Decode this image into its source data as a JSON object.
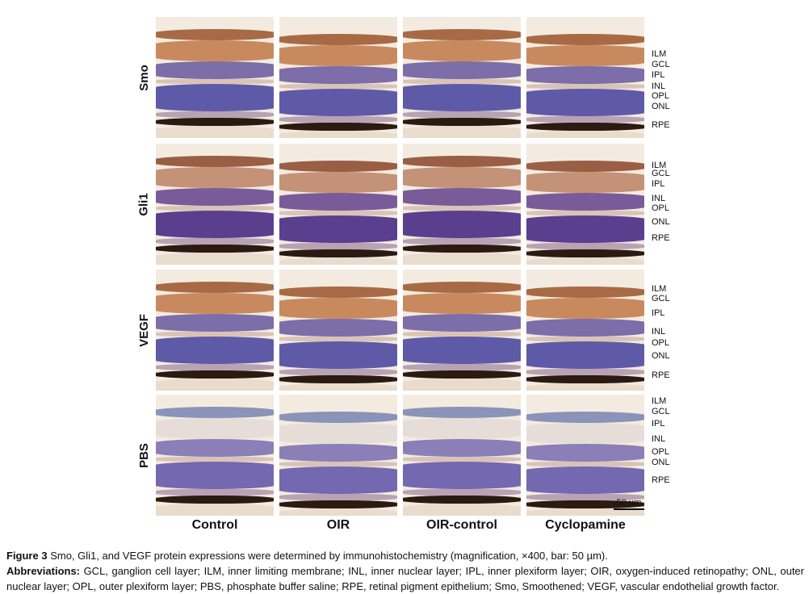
{
  "figure": {
    "rows": [
      {
        "label": "Smo",
        "stain": "strong"
      },
      {
        "label": "Gli1",
        "stain": "moderate"
      },
      {
        "label": "VEGF",
        "stain": "strong"
      },
      {
        "label": "PBS",
        "stain": "negative"
      }
    ],
    "columns": [
      "Control",
      "OIR",
      "OIR-control",
      "Cyclopamine"
    ],
    "layer_labels": [
      [
        "ILM",
        "GCL",
        "IPL",
        "INL",
        "OPL",
        "ONL",
        "RPE"
      ],
      [
        "ILM",
        "GCL",
        "IPL",
        "INL",
        "OPL",
        "ONL",
        "RPE"
      ],
      [
        "ILM",
        "GCL",
        "IPL",
        "INL",
        "OPL",
        "ONL",
        "RPE"
      ],
      [
        "ILM",
        "GCL",
        "IPL",
        "INL",
        "OPL",
        "ONL",
        "RPE"
      ]
    ],
    "scale_bar": "50 µm",
    "colors": {
      "background": "#f3ebe0",
      "dab_brown": "#b0714a",
      "hematoxylin_purple": "#6d5a9e",
      "pigment": "#2a1a12"
    }
  },
  "caption": {
    "figure_label": "Figure 3",
    "text": " Smo, Gli1, and VEGF protein expressions were determined by immunohistochemistry (magnification, ×400, bar: 50 µm).",
    "abbrev_label": "Abbreviations:",
    "abbrev_text": " GCL, ganglion cell layer; ILM, inner limiting membrane; INL, inner nuclear layer; IPL, inner plexiform layer; OIR, oxygen-induced retinopathy; ONL, outer nuclear layer; OPL, outer plexiform layer; PBS, phosphate buffer saline; RPE, retinal pigment epithelium; Smo, Smoothened; VEGF, vascular endothelial growth factor."
  }
}
